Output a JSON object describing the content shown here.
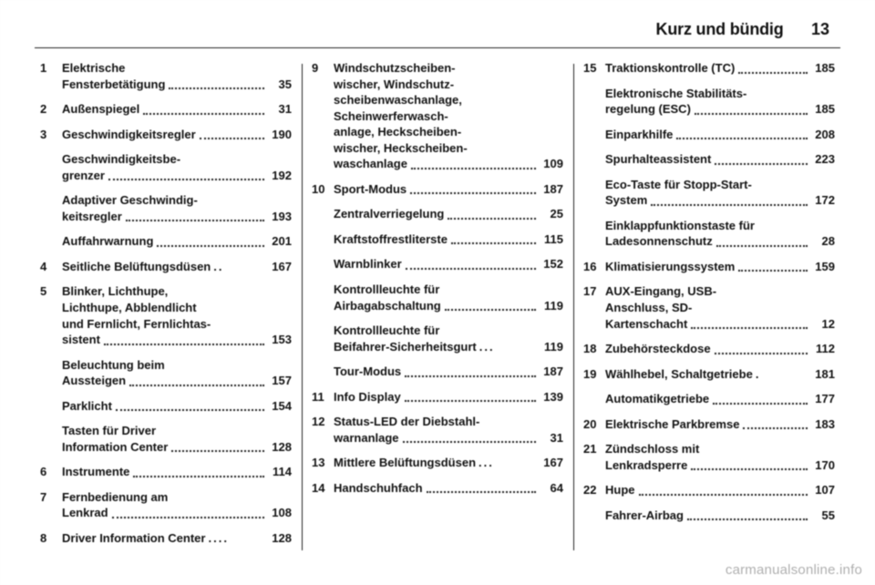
{
  "header": {
    "title": "Kurz und bündig",
    "page": "13"
  },
  "watermark": "carmanualsonline.info",
  "columns": [
    [
      {
        "n": "1",
        "lines": [
          "Elektrische",
          "Fensterbetätigung"
        ],
        "pg": "35"
      },
      {
        "n": "2",
        "lines": [
          "Außenspiegel"
        ],
        "pg": "31"
      },
      {
        "n": "3",
        "lines": [
          "Geschwindigkeitsregler"
        ],
        "pg": "190"
      },
      {
        "n": "",
        "lines": [
          "Geschwindigkeitsbe-",
          "grenzer"
        ],
        "pg": "192"
      },
      {
        "n": "",
        "lines": [
          "Adaptiver Geschwindig-",
          "keitsregler"
        ],
        "pg": "193"
      },
      {
        "n": "",
        "lines": [
          "Auffahrwarnung"
        ],
        "pg": "201"
      },
      {
        "n": "4",
        "lines": [
          "Seitliche Belüftungsdüsen"
        ],
        "pg": "167",
        "sep": ".."
      },
      {
        "n": "5",
        "lines": [
          "Blinker, Lichthupe,",
          "Lichthupe, Abblendlicht",
          "und Fernlicht, Fernlichtas-",
          "sistent"
        ],
        "pg": "153"
      },
      {
        "n": "",
        "lines": [
          "Beleuchtung beim",
          "Aussteigen"
        ],
        "pg": "157"
      },
      {
        "n": "",
        "lines": [
          "Parklicht"
        ],
        "pg": "154"
      },
      {
        "n": "",
        "lines": [
          "Tasten für Driver",
          "Information Center"
        ],
        "pg": "128"
      },
      {
        "n": "6",
        "lines": [
          "Instrumente"
        ],
        "pg": "114"
      },
      {
        "n": "7",
        "lines": [
          "Fernbedienung am",
          "Lenkrad"
        ],
        "pg": "108"
      },
      {
        "n": "8",
        "lines": [
          "Driver Information Center"
        ],
        "pg": "128",
        "sep": "...."
      }
    ],
    [
      {
        "n": "9",
        "lines": [
          "Windschutzscheiben-",
          "wischer, Windschutz-",
          "scheibenwaschanlage,",
          "Scheinwerferwasch-",
          "anlage, Heckscheiben-",
          "wischer, Heckscheiben-",
          "waschanlage"
        ],
        "pg": "109"
      },
      {
        "n": "10",
        "lines": [
          "Sport-Modus"
        ],
        "pg": "187"
      },
      {
        "n": "",
        "lines": [
          "Zentralverriegelung"
        ],
        "pg": "25"
      },
      {
        "n": "",
        "lines": [
          "Kraftstoffrestliterste"
        ],
        "pg": "115"
      },
      {
        "n": "",
        "lines": [
          "Warnblinker"
        ],
        "pg": "152"
      },
      {
        "n": "",
        "lines": [
          "Kontrollleuchte für",
          "Airbagabschaltung"
        ],
        "pg": "119"
      },
      {
        "n": "",
        "lines": [
          "Kontrollleuchte für",
          "Beifahrer-Sicherheitsgurt"
        ],
        "pg": "119",
        "sep": "..."
      },
      {
        "n": "",
        "lines": [
          "Tour-Modus"
        ],
        "pg": "187"
      },
      {
        "n": "11",
        "lines": [
          "Info Display"
        ],
        "pg": "139"
      },
      {
        "n": "12",
        "lines": [
          "Status-LED der Diebstahl-",
          "warnanlage"
        ],
        "pg": "31"
      },
      {
        "n": "13",
        "lines": [
          "Mittlere Belüftungsdüsen"
        ],
        "pg": "167",
        "sep": "..."
      },
      {
        "n": "14",
        "lines": [
          "Handschuhfach"
        ],
        "pg": "64"
      }
    ],
    [
      {
        "n": "15",
        "lines": [
          "Traktionskontrolle (TC)"
        ],
        "pg": "185"
      },
      {
        "n": "",
        "lines": [
          "Elektronische Stabilitäts-",
          "regelung (ESC)"
        ],
        "pg": "185"
      },
      {
        "n": "",
        "lines": [
          "Einparkhilfe"
        ],
        "pg": "208"
      },
      {
        "n": "",
        "lines": [
          "Spurhalteassistent"
        ],
        "pg": "223"
      },
      {
        "n": "",
        "lines": [
          "Eco-Taste für Stopp-Start-",
          "System"
        ],
        "pg": "172"
      },
      {
        "n": "",
        "lines": [
          "Einklappfunktionstaste für",
          "Ladesonnenschutz"
        ],
        "pg": "28"
      },
      {
        "n": "16",
        "lines": [
          "Klimatisierungssystem"
        ],
        "pg": "159"
      },
      {
        "n": "17",
        "lines": [
          "AUX-Eingang, USB-",
          "Anschluss, SD-",
          "Kartenschacht"
        ],
        "pg": "12"
      },
      {
        "n": "18",
        "lines": [
          "Zubehörsteckdose"
        ],
        "pg": "112"
      },
      {
        "n": "19",
        "lines": [
          "Wählhebel, Schaltgetriebe"
        ],
        "pg": "181",
        "sep": "."
      },
      {
        "n": "",
        "lines": [
          "Automatikgetriebe"
        ],
        "pg": "177"
      },
      {
        "n": "20",
        "lines": [
          "Elektrische Parkbremse"
        ],
        "pg": "183"
      },
      {
        "n": "21",
        "lines": [
          "Zündschloss mit",
          "Lenkradsperre"
        ],
        "pg": "170"
      },
      {
        "n": "22",
        "lines": [
          "Hupe"
        ],
        "pg": "107"
      },
      {
        "n": "",
        "lines": [
          "Fahrer-Airbag"
        ],
        "pg": "55"
      }
    ]
  ]
}
